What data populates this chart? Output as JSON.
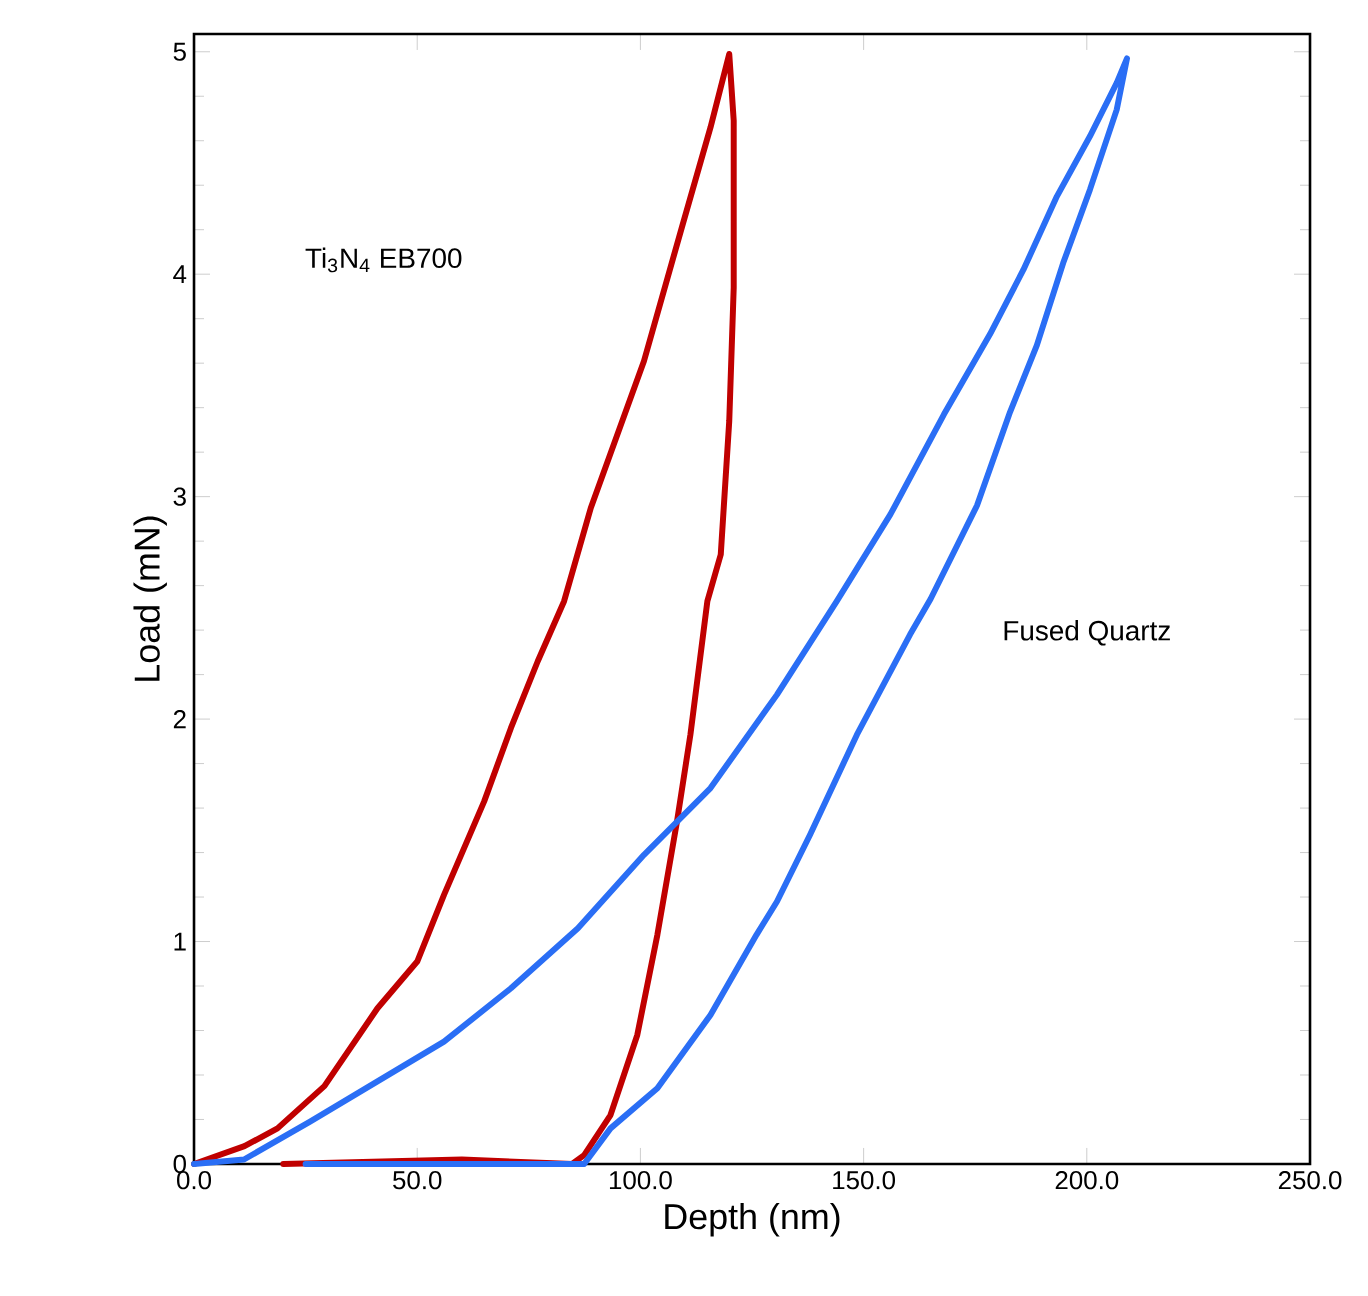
{
  "chart_data": {
    "type": "line",
    "xlabel": "Depth (nm)",
    "ylabel": "Load (mN)",
    "xlim": [
      0,
      250
    ],
    "ylim": [
      0,
      5.08
    ],
    "xticks": [
      {
        "value": 0,
        "label": "0.0"
      },
      {
        "value": 50,
        "label": "50.0"
      },
      {
        "value": 100,
        "label": "100.0"
      },
      {
        "value": 150,
        "label": "150.0"
      },
      {
        "value": 200,
        "label": "200.0"
      },
      {
        "value": 250,
        "label": "250.0"
      }
    ],
    "yticks": [
      0,
      1,
      2,
      3,
      4,
      5
    ],
    "marker": "none",
    "line_style": "solid",
    "annotations": [
      "Ti$_{3}$N$_{4}$ EB700",
      "Fused Quartz"
    ],
    "series": [
      {
        "color": "#c00000",
        "x": [
          0,
          11.3,
          18.7,
          29.2,
          41.1,
          50,
          56,
          65,
          71,
          77,
          82.9,
          88.9,
          100.8,
          109.7,
          115.7,
          119.9,
          120.9,
          120.9,
          119.9,
          118,
          115,
          111.2,
          108.2,
          103.8,
          99.3,
          93.3,
          87.4,
          84.7,
          60,
          20
        ],
        "values": [
          0,
          0.08,
          0.16,
          0.35,
          0.7,
          0.91,
          1.21,
          1.63,
          1.96,
          2.26,
          2.53,
          2.95,
          3.61,
          4.24,
          4.66,
          4.99,
          4.69,
          3.94,
          3.34,
          2.74,
          2.53,
          1.93,
          1.54,
          1.03,
          0.58,
          0.22,
          0.04,
          0,
          0.02,
          0
        ]
      },
      {
        "color": "#2a6ef5",
        "x": [
          0,
          11.2,
          26,
          41,
          56,
          71,
          86,
          100.8,
          115.7,
          130.6,
          144,
          156,
          168,
          178.3,
          185.8,
          193.3,
          200.7,
          206.7,
          209,
          206.7,
          200.7,
          194.7,
          188.8,
          182.8,
          175.4,
          165,
          160.4,
          148.5,
          138,
          130.6,
          126,
          115.7,
          103.8,
          93.3,
          87.4,
          25
        ],
        "values": [
          0,
          0.02,
          0.19,
          0.37,
          0.55,
          0.79,
          1.06,
          1.39,
          1.69,
          2.11,
          2.53,
          2.92,
          3.37,
          3.73,
          4.02,
          4.35,
          4.62,
          4.86,
          4.97,
          4.74,
          4.38,
          4.05,
          3.68,
          3.38,
          2.96,
          2.54,
          2.38,
          1.93,
          1.48,
          1.18,
          1.03,
          0.67,
          0.34,
          0.16,
          0,
          0
        ]
      }
    ]
  }
}
